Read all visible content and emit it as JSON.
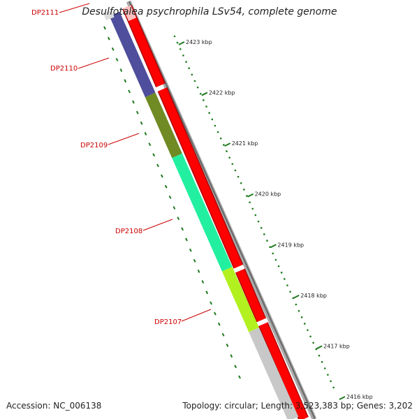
{
  "title": "Desulfotalea psychrophila LSv54, complete genome",
  "footer": {
    "accession": "Accession: NC_006138",
    "summary": "Topology: circular; Length: 3,523,383 bp; Genes: 3,202"
  },
  "colors": {
    "cds_red": "#ff0000",
    "cds_pink": "#ffc0c0",
    "backbone": "#888888",
    "tick_green": "#1e7a1e",
    "gene_label": "#cc0000"
  },
  "scale_labels": [
    "2423 kbp",
    "2422 kbp",
    "2421 kbp",
    "2420 kbp",
    "2419 kbp",
    "2418 kbp",
    "2417 kbp",
    "2416 kbp"
  ],
  "genes": [
    {
      "name": "DP2111",
      "color": "#dddddd"
    },
    {
      "name": "DP2110",
      "color": "#4e4e9c"
    },
    {
      "name": "DP2109",
      "color": "#708a24"
    },
    {
      "name": "DP2108",
      "color": "#22f0a0"
    },
    {
      "name": "DP2107",
      "color": "#b2f020"
    },
    {
      "name": "",
      "color": "#c8c8c8"
    }
  ]
}
